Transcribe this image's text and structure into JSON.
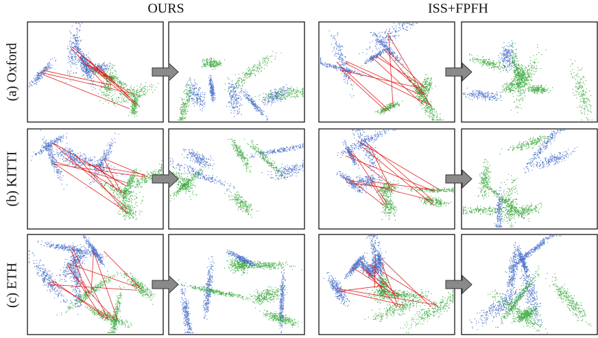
{
  "columns": [
    "OURS",
    "ISS+FPFH"
  ],
  "rows": [
    "(a) Oxford",
    "(b) KITTI",
    "(c) ETH"
  ]
}
